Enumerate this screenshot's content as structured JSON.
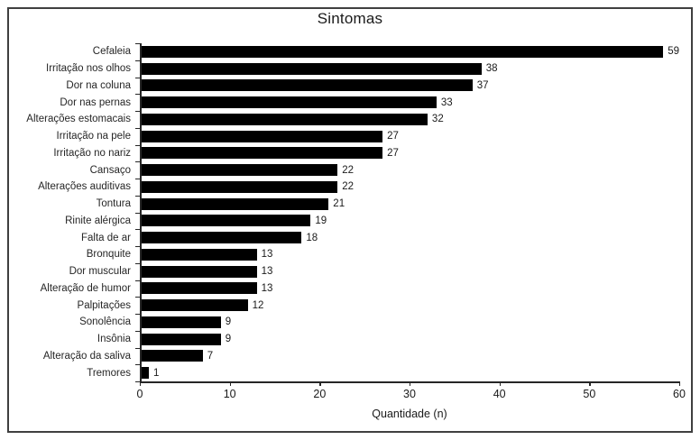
{
  "chart_data": {
    "type": "bar",
    "orientation": "horizontal",
    "title": "Sintomas",
    "xlabel": "Quantidade (n)",
    "ylabel": "",
    "categories": [
      "Cefaleia",
      "Irritação nos olhos",
      "Dor na coluna",
      "Dor nas pernas",
      "Alterações estomacais",
      "Irritação na pele",
      "Irritação no nariz",
      "Cansaço",
      "Alterações auditivas",
      "Tontura",
      "Rinite alérgica",
      "Falta de ar",
      "Bronquite",
      "Dor muscular",
      "Alteração de humor",
      "Palpitações",
      "Sonolência",
      "Insônia",
      "Alteração da saliva",
      "Tremores"
    ],
    "values": [
      59,
      38,
      37,
      33,
      32,
      27,
      27,
      22,
      22,
      21,
      19,
      18,
      13,
      13,
      13,
      12,
      9,
      9,
      7,
      1
    ],
    "xlim": [
      0,
      60
    ],
    "xticks": [
      0,
      10,
      20,
      30,
      40,
      50,
      60
    ],
    "grid": false,
    "data_labels": true,
    "legend": false
  },
  "colors": {
    "bar": "#000000",
    "text": "#262626",
    "axis": "#262626",
    "frame_border": "#3f3f3f",
    "background": "#ffffff"
  }
}
